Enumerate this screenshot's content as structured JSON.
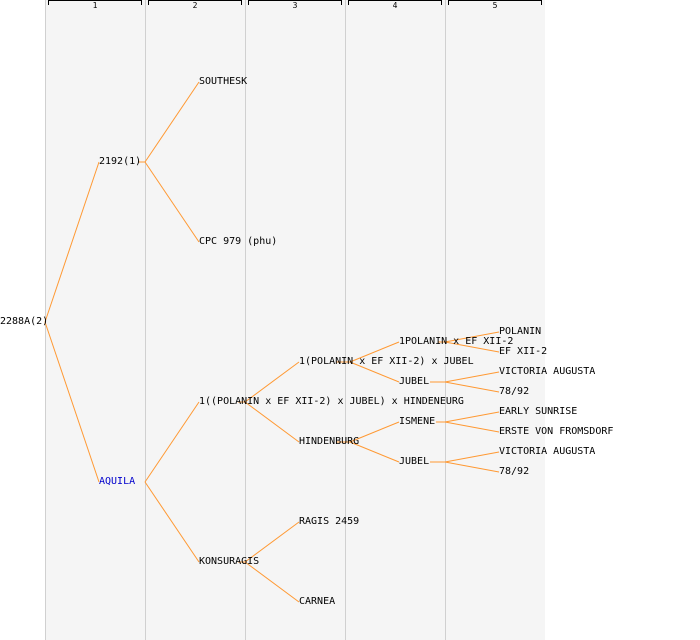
{
  "columns": [
    "1",
    "2",
    "3",
    "4",
    "5"
  ],
  "colors": {
    "link": "#ff9933",
    "highlight": "#0000cc",
    "text": "#000000"
  },
  "pedigree": {
    "label": "2288A(2)",
    "sire": {
      "label": "2192(1)",
      "sire": {
        "label": "SOUTHESK"
      },
      "dam": {
        "label": "CPC 979 (phu)"
      }
    },
    "dam": {
      "label": "AQUILA",
      "highlight": true,
      "sire": {
        "label": "1((POLANIN x EF XII-2) x JUBEL) x HINDENEURG",
        "sire": {
          "label": "1(POLANIN x EF XII-2) x JUBEL",
          "sire": {
            "label": "1POLANIN x EF XII-2",
            "sire": {
              "label": "POLANIN"
            },
            "dam": {
              "label": "EF XII-2"
            }
          },
          "dam": {
            "label": "JUBEL",
            "sire": {
              "label": "VICTORIA AUGUSTA"
            },
            "dam": {
              "label": "78/92"
            }
          }
        },
        "dam": {
          "label": "HINDENBURG",
          "sire": {
            "label": "ISMENE",
            "sire": {
              "label": "EARLY SUNRISE"
            },
            "dam": {
              "label": "ERSTE VON FROMSDORF"
            }
          },
          "dam": {
            "label": "JUBEL",
            "sire": {
              "label": "VICTORIA AUGUSTA"
            },
            "dam": {
              "label": "78/92"
            }
          }
        }
      },
      "dam": {
        "label": "KONSURAGIS",
        "sire": {
          "label": "RAGIS 2459"
        },
        "dam": {
          "label": "CARNEA"
        }
      }
    }
  }
}
